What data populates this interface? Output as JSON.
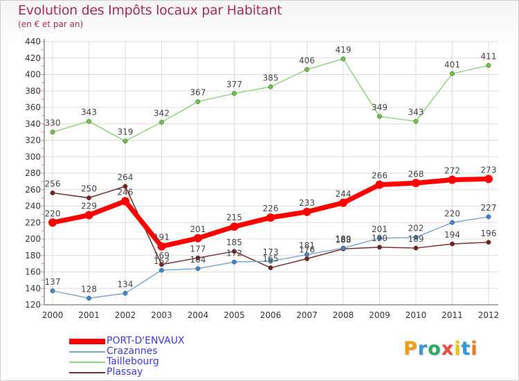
{
  "header": {
    "title": "Evolution des Impôts locaux par Habitant",
    "subtitle": "(en € et par an)"
  },
  "logo": {
    "letters": [
      "P",
      "r",
      "o",
      "x",
      "i",
      "t",
      "i"
    ],
    "colors": [
      "#f39c12",
      "#3498db",
      "#27ae60",
      "#e74c3c",
      "#f1c40f",
      "#3498db",
      "#e67e22"
    ]
  },
  "chart_data": {
    "type": "line",
    "x": [
      "2000",
      "2001",
      "2002",
      "2003",
      "2004",
      "2005",
      "2006",
      "2007",
      "2008",
      "2009",
      "2010",
      "2011",
      "2012"
    ],
    "ylim": [
      120,
      440
    ],
    "yticks": [
      120,
      140,
      160,
      180,
      200,
      220,
      240,
      260,
      280,
      300,
      320,
      340,
      360,
      380,
      400,
      420,
      440
    ],
    "grid": true,
    "legend_position": "bottom-left",
    "series": [
      {
        "name": "PORT-D'ENVAUX",
        "color": "#ff0000",
        "dot_color": "#ff0000",
        "width": 7,
        "values": [
          220,
          229,
          246,
          191,
          201,
          215,
          226,
          233,
          244,
          266,
          268,
          272,
          273
        ]
      },
      {
        "name": "Crazannes",
        "color": "#7aa7d4",
        "dot_color": "#3c88d0",
        "width": 1.5,
        "values": [
          137,
          128,
          134,
          162,
          164,
          172,
          173,
          181,
          189,
          201,
          202,
          220,
          227
        ]
      },
      {
        "name": "Taillebourg",
        "color": "#8cd67a",
        "dot_color": "#6cc542",
        "width": 1.5,
        "values": [
          330,
          343,
          319,
          342,
          367,
          377,
          385,
          406,
          419,
          349,
          343,
          401,
          411
        ]
      },
      {
        "name": "Plassay",
        "color": "#7a2f2f",
        "dot_color": "#7a1e1e",
        "width": 1.5,
        "values": [
          256,
          250,
          264,
          169,
          177,
          185,
          165,
          176,
          188,
          190,
          189,
          194,
          196
        ]
      }
    ],
    "data_labels": [
      {
        "series": 0,
        "labels": [
          "220",
          "229",
          "246",
          "191",
          "201",
          "215",
          "226",
          "233",
          "244",
          "266",
          "268",
          "272",
          "273"
        ]
      },
      {
        "series": 1,
        "labels": [
          "137",
          "128",
          "134",
          "162",
          "164",
          "172",
          "173",
          "181",
          "189",
          "201",
          "202",
          "220",
          "227"
        ]
      },
      {
        "series": 2,
        "labels": [
          "330",
          "343",
          "319",
          "342",
          "367",
          "377",
          "385",
          "406",
          "419",
          "349",
          "343",
          "401",
          "411"
        ]
      },
      {
        "series": 3,
        "labels": [
          "256",
          "250",
          "264",
          "169",
          "177",
          "185",
          "165",
          "176",
          "188",
          "190",
          "189",
          "194",
          "196"
        ]
      }
    ]
  }
}
